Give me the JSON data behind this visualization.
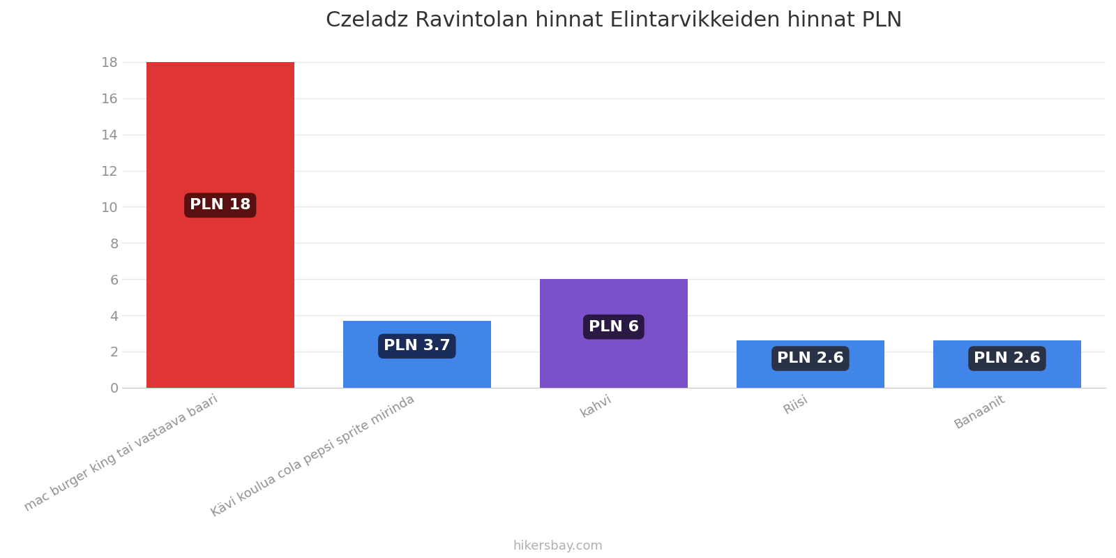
{
  "title": "Czeladz Ravintolan hinnat Elintarvikkeiden hinnat PLN",
  "categories": [
    "mac burger king tai vastaava baari",
    "Kävi koulua cola pepsi sprite mirinda",
    "kahvi",
    "Riisi",
    "Banaanit"
  ],
  "values": [
    18,
    3.7,
    6,
    2.6,
    2.6
  ],
  "bar_colors": [
    "#e03535",
    "#4285e8",
    "#7b50c8",
    "#4285e8",
    "#4285e8"
  ],
  "label_bg_colors": [
    "#5a1010",
    "#1a2d5a",
    "#2a1845",
    "#2a3248",
    "#2a3248"
  ],
  "labels": [
    "PLN 18",
    "PLN 3.7",
    "PLN 6",
    "PLN 2.6",
    "PLN 2.6"
  ],
  "ylim": [
    0,
    19
  ],
  "yticks": [
    0,
    2,
    4,
    6,
    8,
    10,
    12,
    14,
    16,
    18
  ],
  "watermark": "hikersbay.com",
  "title_fontsize": 22,
  "tick_label_fontsize": 14,
  "label_fontsize": 16,
  "background_color": "#ffffff",
  "grid_color": "#e8e8e8"
}
